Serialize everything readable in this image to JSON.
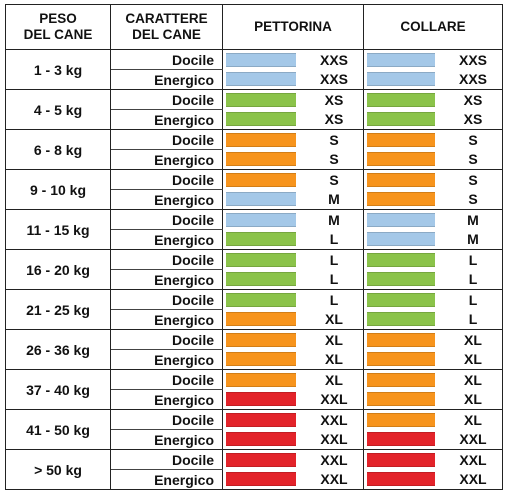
{
  "headers": {
    "weight_line1": "PESO",
    "weight_line2": "DEL CANE",
    "temperament_line1": "CARATTERE",
    "temperament_line2": "DEL CANE",
    "harness": "PETTORINA",
    "collar": "COLLARE"
  },
  "size_colors": {
    "XXS": "#a4c8e8",
    "XS": "#8bc34a",
    "S": "#f7941d",
    "M": "#a4c8e8",
    "L": "#8bc34a",
    "XL": "#f7941d",
    "XXL": "#e3232a"
  },
  "rows": [
    {
      "weight": "1 - 3 kg",
      "entries": [
        {
          "temperament": "Docile",
          "harness": "XXS",
          "collar": "XXS"
        },
        {
          "temperament": "Energico",
          "harness": "XXS",
          "collar": "XXS"
        }
      ]
    },
    {
      "weight": "4 - 5 kg",
      "entries": [
        {
          "temperament": "Docile",
          "harness": "XS",
          "collar": "XS"
        },
        {
          "temperament": "Energico",
          "harness": "XS",
          "collar": "XS"
        }
      ]
    },
    {
      "weight": "6 - 8 kg",
      "entries": [
        {
          "temperament": "Docile",
          "harness": "S",
          "collar": "S"
        },
        {
          "temperament": "Energico",
          "harness": "S",
          "collar": "S"
        }
      ]
    },
    {
      "weight": "9 - 10 kg",
      "entries": [
        {
          "temperament": "Docile",
          "harness": "S",
          "collar": "S"
        },
        {
          "temperament": "Energico",
          "harness": "M",
          "collar": "S"
        }
      ]
    },
    {
      "weight": "11 - 15 kg",
      "entries": [
        {
          "temperament": "Docile",
          "harness": "M",
          "collar": "M"
        },
        {
          "temperament": "Energico",
          "harness": "L",
          "collar": "M"
        }
      ]
    },
    {
      "weight": "16 - 20 kg",
      "entries": [
        {
          "temperament": "Docile",
          "harness": "L",
          "collar": "L"
        },
        {
          "temperament": "Energico",
          "harness": "L",
          "collar": "L"
        }
      ]
    },
    {
      "weight": "21 - 25 kg",
      "entries": [
        {
          "temperament": "Docile",
          "harness": "L",
          "collar": "L"
        },
        {
          "temperament": "Energico",
          "harness": "XL",
          "collar": "L"
        }
      ]
    },
    {
      "weight": "26 - 36 kg",
      "entries": [
        {
          "temperament": "Docile",
          "harness": "XL",
          "collar": "XL"
        },
        {
          "temperament": "Energico",
          "harness": "XL",
          "collar": "XL"
        }
      ]
    },
    {
      "weight": "37 - 40 kg",
      "entries": [
        {
          "temperament": "Docile",
          "harness": "XL",
          "collar": "XL"
        },
        {
          "temperament": "Energico",
          "harness": "XXL",
          "collar": "XL"
        }
      ]
    },
    {
      "weight": "41 - 50 kg",
      "entries": [
        {
          "temperament": "Docile",
          "harness": "XXL",
          "collar": "XL"
        },
        {
          "temperament": "Energico",
          "harness": "XXL",
          "collar": "XXL"
        }
      ]
    },
    {
      "weight": "> 50 kg",
      "entries": [
        {
          "temperament": "Docile",
          "harness": "XXL",
          "collar": "XXL"
        },
        {
          "temperament": "Energico",
          "harness": "XXL",
          "collar": "XXL"
        }
      ]
    }
  ]
}
